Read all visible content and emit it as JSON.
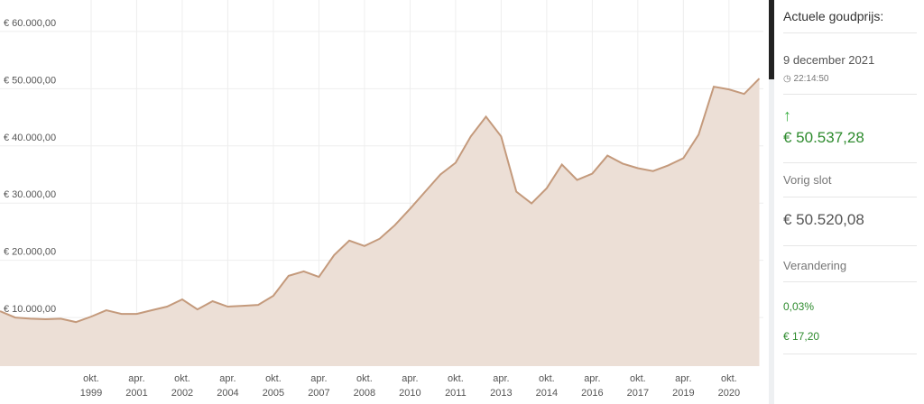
{
  "chart_data": {
    "type": "area",
    "categories": [
      null,
      null,
      null,
      null,
      null,
      null,
      [
        "okt.",
        "1999"
      ],
      null,
      null,
      [
        "apr.",
        "2001"
      ],
      null,
      null,
      [
        "okt.",
        "2002"
      ],
      null,
      null,
      [
        "apr.",
        "2004"
      ],
      null,
      null,
      [
        "okt.",
        "2005"
      ],
      null,
      null,
      [
        "apr.",
        "2007"
      ],
      null,
      null,
      [
        "okt.",
        "2008"
      ],
      null,
      null,
      [
        "apr.",
        "2010"
      ],
      null,
      null,
      [
        "okt.",
        "2011"
      ],
      null,
      null,
      [
        "apr.",
        "2013"
      ],
      null,
      null,
      [
        "okt.",
        "2014"
      ],
      null,
      null,
      [
        "apr.",
        "2016"
      ],
      null,
      null,
      [
        "okt.",
        "2017"
      ],
      null,
      null,
      [
        "apr.",
        "2019"
      ],
      null,
      null,
      [
        "okt.",
        "2020"
      ],
      null,
      null
    ],
    "values": [
      11100,
      10000,
      9800,
      9700,
      9800,
      9200,
      10150,
      11270,
      10630,
      10630,
      11270,
      11900,
      13160,
      11420,
      12850,
      11900,
      12050,
      12200,
      13800,
      17280,
      18070,
      17100,
      20900,
      23450,
      22500,
      23770,
      26140,
      29000,
      32000,
      35000,
      37050,
      41650,
      45100,
      41650,
      32000,
      29940,
      32600,
      36740,
      34050,
      35150,
      38300,
      36900,
      36100,
      35600,
      36580,
      37850,
      41960,
      50350,
      49870,
      49080,
      51770
    ],
    "color": "#c49a7c",
    "fill": "#ecdfd6",
    "ylim": [
      1500,
      65500
    ],
    "yticks": [
      {
        "value": 10000,
        "label": "€ 10.000,00"
      },
      {
        "value": 20000,
        "label": "€ 20.000,00"
      },
      {
        "value": 30000,
        "label": "€ 30.000,00"
      },
      {
        "value": 40000,
        "label": "€ 40.000,00"
      },
      {
        "value": 50000,
        "label": "€ 50.000,00"
      },
      {
        "value": 60000,
        "label": "€ 60.000,00"
      }
    ],
    "grid": true
  },
  "panel": {
    "title": "Actuele goudprijs:",
    "date": "9 december 2021",
    "time": "22:14:50",
    "price": "€ 50.537,28",
    "previous_label": "Vorig slot",
    "previous": "€ 50.520,08",
    "change_label": "Verandering",
    "change_percent": "0,03%",
    "change_amount": "€ 17,20"
  }
}
